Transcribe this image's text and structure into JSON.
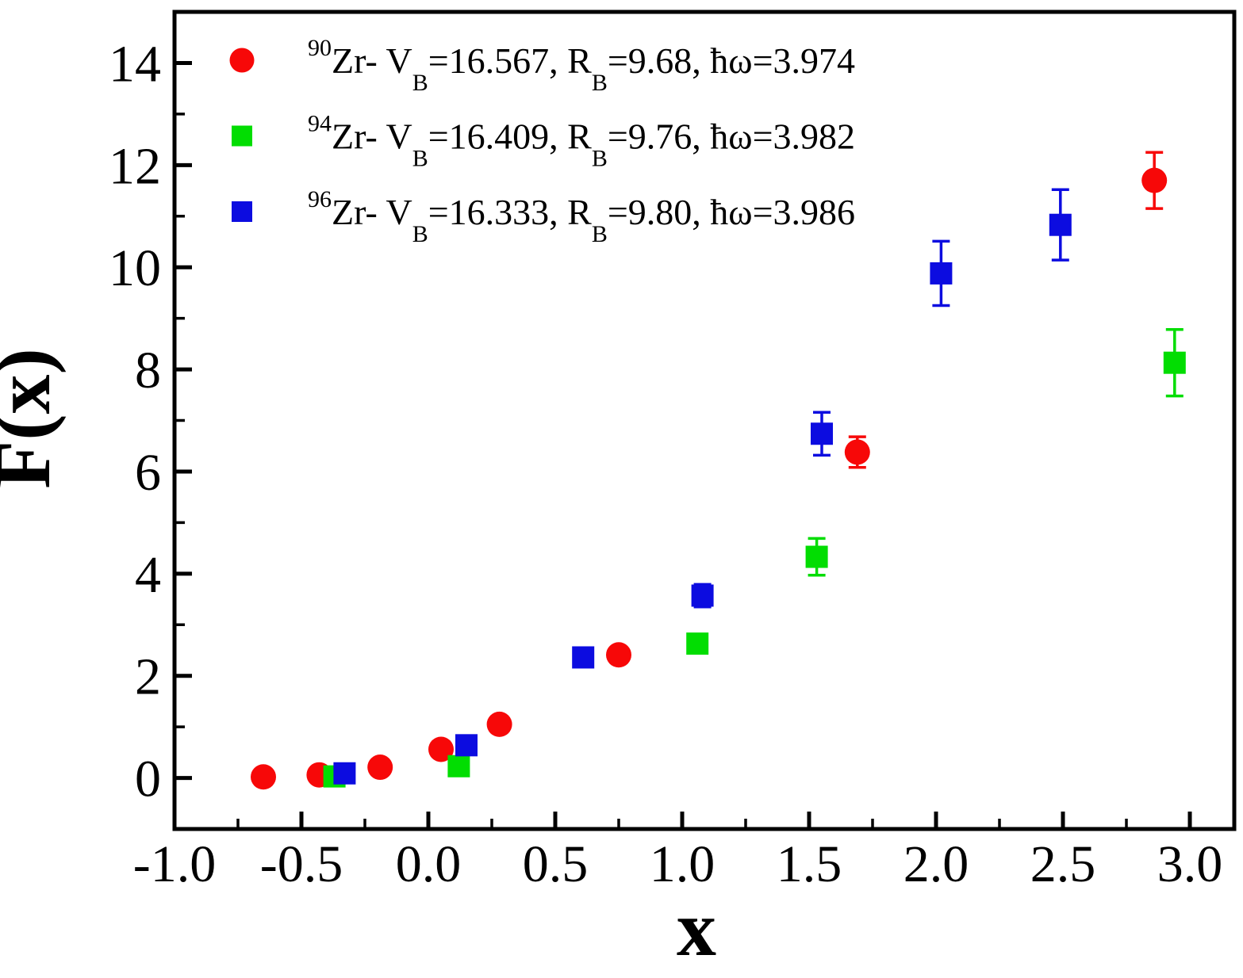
{
  "chart_data": {
    "type": "scatter",
    "title": "",
    "xlabel": "x",
    "ylabel": "F(x)",
    "xlim": [
      -1.0,
      3.175
    ],
    "ylim": [
      -1.0,
      15.0
    ],
    "grid": false,
    "legend_position": "top-left-inside",
    "x_ticks": [
      -1.0,
      -0.5,
      0.0,
      0.5,
      1.0,
      1.5,
      2.0,
      2.5,
      3.0
    ],
    "x_tick_labels": [
      "-1.0",
      "-0.5",
      "0.0",
      "0.5",
      "1.0",
      "1.5",
      "2.0",
      "2.5",
      "3.0"
    ],
    "x_minor_step": 0.25,
    "y_ticks": [
      0,
      2,
      4,
      6,
      8,
      10,
      12,
      14
    ],
    "y_tick_labels": [
      "0",
      "2",
      "4",
      "6",
      "8",
      "10",
      "12",
      "14"
    ],
    "y_minor_step": 1,
    "frame_color": "#000000",
    "series": [
      {
        "name": "90Zr",
        "marker": "circle",
        "color": "#f70808",
        "legend_segments": [
          [
            "sup",
            "90"
          ],
          [
            "t",
            "Zr- V"
          ],
          [
            "sub",
            "B"
          ],
          [
            "t",
            "=16.567, R"
          ],
          [
            "sub",
            "B"
          ],
          [
            "t",
            "=9.68, ħω=3.974"
          ]
        ],
        "points": [
          {
            "x": -0.65,
            "y": 0.02
          },
          {
            "x": -0.43,
            "y": 0.06
          },
          {
            "x": -0.19,
            "y": 0.21
          },
          {
            "x": 0.05,
            "y": 0.56
          },
          {
            "x": 0.28,
            "y": 1.05
          },
          {
            "x": 0.75,
            "y": 2.41
          },
          {
            "x": 1.69,
            "y": 6.38,
            "ey": 0.3
          },
          {
            "x": 2.86,
            "y": 11.7,
            "ey": 0.55
          }
        ]
      },
      {
        "name": "94Zr",
        "marker": "square",
        "color": "#02dd02",
        "legend_segments": [
          [
            "sup",
            "94"
          ],
          [
            "t",
            "Zr- V"
          ],
          [
            "sub",
            "B"
          ],
          [
            "t",
            "=16.409, R"
          ],
          [
            "sub",
            "B"
          ],
          [
            "t",
            "=9.76, ħω=3.982"
          ]
        ],
        "points": [
          {
            "x": -0.37,
            "y": 0.03,
            "ey": 0.15
          },
          {
            "x": 0.12,
            "y": 0.23
          },
          {
            "x": 1.06,
            "y": 2.63
          },
          {
            "x": 1.53,
            "y": 4.33,
            "ey": 0.36
          },
          {
            "x": 2.94,
            "y": 8.13,
            "ey": 0.65
          }
        ]
      },
      {
        "name": "96Zr",
        "marker": "square",
        "color": "#0c0ce0",
        "legend_segments": [
          [
            "sup",
            "96"
          ],
          [
            "t",
            "Zr- V"
          ],
          [
            "sub",
            "B"
          ],
          [
            "t",
            "=16.333, R"
          ],
          [
            "sub",
            "B"
          ],
          [
            "t",
            "=9.80, ħω=3.986"
          ]
        ],
        "points": [
          {
            "x": -0.33,
            "y": 0.09,
            "ey": 0.1
          },
          {
            "x": 0.15,
            "y": 0.64
          },
          {
            "x": 0.61,
            "y": 2.36
          },
          {
            "x": 1.08,
            "y": 3.57,
            "ey": 0.22
          },
          {
            "x": 1.55,
            "y": 6.74,
            "ey": 0.42
          },
          {
            "x": 2.02,
            "y": 9.88,
            "ey": 0.63
          },
          {
            "x": 2.49,
            "y": 10.83,
            "ey": 0.69
          }
        ]
      }
    ]
  }
}
